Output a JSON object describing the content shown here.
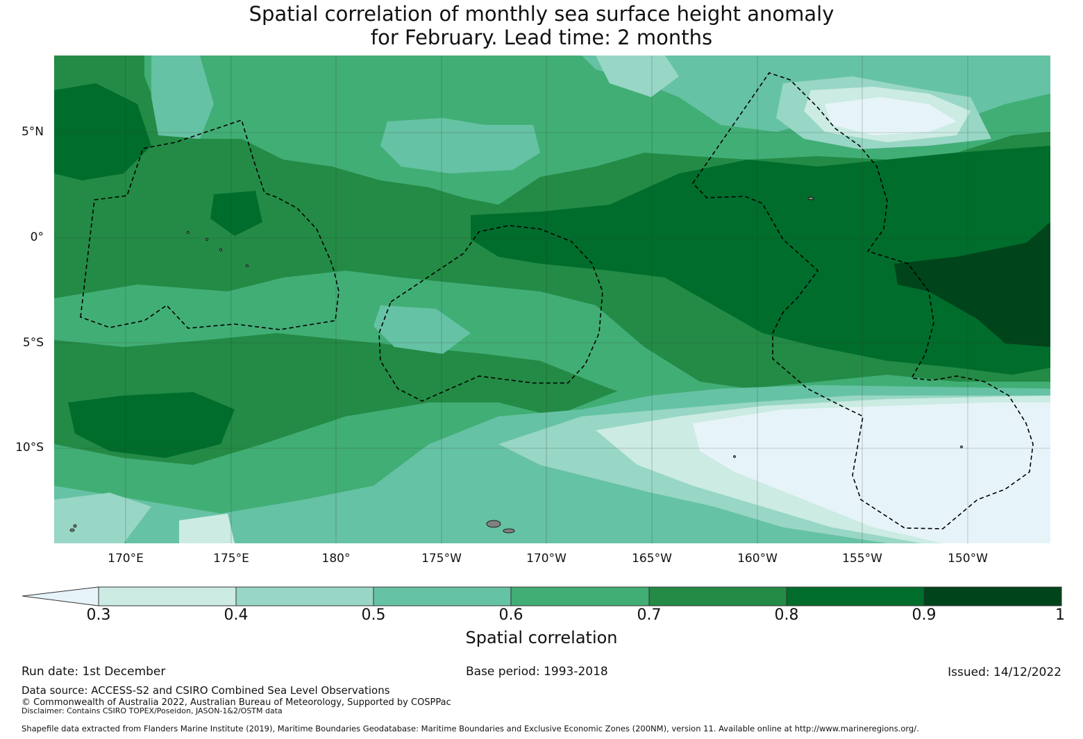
{
  "title": {
    "line1": "Spatial correlation of monthly sea surface height anomaly",
    "line2": "for February. Lead time: 2 months"
  },
  "map": {
    "lat_labels": [
      "5°N",
      "0°",
      "5°S",
      "10°S"
    ],
    "lon_labels": [
      "170°E",
      "175°E",
      "180°",
      "175°W",
      "170°W",
      "165°W",
      "160°W",
      "155°W",
      "150°W"
    ],
    "palette": [
      "#e6f4f9",
      "#cbebe3",
      "#98d6c5",
      "#66c2a4",
      "#41ae76",
      "#238b45",
      "#006d2c",
      "#00441b"
    ],
    "boundary_style": "black dashed EEZ outlines",
    "land_color": "#808080"
  },
  "colorbar": {
    "ticks": [
      "0.3",
      "0.4",
      "0.5",
      "0.6",
      "0.7",
      "0.8",
      "0.9",
      "1"
    ],
    "label": "Spatial correlation",
    "extend": "min"
  },
  "footer": {
    "run_date": "Run date: 1st December",
    "base_period": "Base period: 1993-2018",
    "issued": "Issued: 14/12/2022",
    "data_source": "Data source: ACCESS-S2 and CSIRO Combined Sea Level Observations",
    "copyright": "© Commonwealth of Australia 2022, Australian Bureau of Meteorology, Supported by COSPPac",
    "disclaimer": "Disclaimer: Contains CSIRO TOPEX/Poseidon, JASON-1&2/OSTM data",
    "shapefile": "Shapefile data extracted from Flanders Marine Institute (2019), Maritime Boundaries Geodatabase: Maritime Boundaries and Exclusive Economic Zones (200NM), version 11. Available online at http://www.marineregions.org/."
  }
}
